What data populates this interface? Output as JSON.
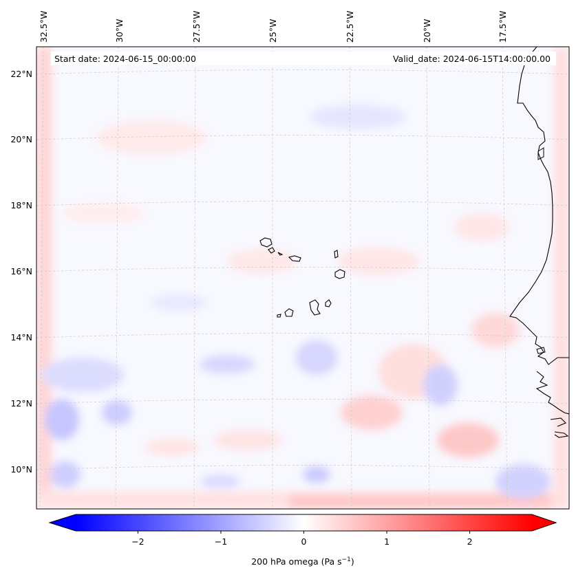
{
  "map": {
    "start_label": "Start date: 2024-06-15_00:00:00",
    "valid_label": "Valid_date: 2024-06-15T14:00:00.00",
    "lon_labels": [
      "32.5°W",
      "30°W",
      "27.5°W",
      "25°W",
      "22.5°W",
      "20°W",
      "17.5°W"
    ],
    "lat_labels": [
      "22°N",
      "20°N",
      "18°N",
      "16°N",
      "14°N",
      "12°N",
      "10°N"
    ],
    "coastline_color": "#000000",
    "gridline_style": "dashed light gray"
  },
  "colorbar": {
    "label_main": "200 hPa omega (Pa s",
    "label_exp": "−1",
    "label_close": ")",
    "ticks": [
      "−2",
      "−1",
      "0",
      "1",
      "2"
    ],
    "tick_values": [
      -2,
      -1,
      0,
      1,
      2
    ],
    "range": [
      -2.75,
      2.75
    ],
    "colormap": "bwr",
    "min_color": "#0000ff",
    "mid_color": "#ffffff",
    "max_color": "#ff0000",
    "extend": "both"
  }
}
